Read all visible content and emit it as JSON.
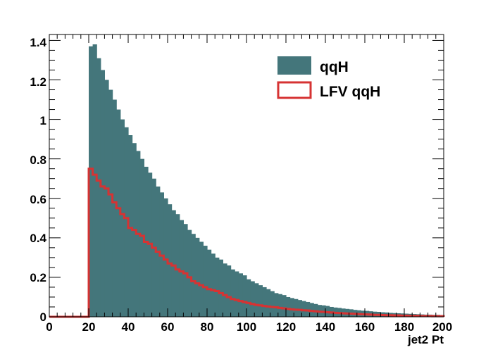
{
  "chart_data": {
    "type": "bar",
    "xlabel": "jet2 Pt",
    "ylabel": "",
    "xlim": [
      0,
      200
    ],
    "ylim": [
      0,
      1.43
    ],
    "x_ticks": [
      "0",
      "20",
      "40",
      "60",
      "80",
      "100",
      "120",
      "140",
      "160",
      "180",
      "200"
    ],
    "y_ticks": [
      "0",
      "0.2",
      "0.4",
      "0.6",
      "0.8",
      "1",
      "1.2",
      "1.4"
    ],
    "bin_width": 2,
    "bin_edges_start": 20,
    "legend_position": "top-right",
    "series": [
      {
        "name": "qqH",
        "style": "filled",
        "color": "#44767b",
        "values": [
          1.37,
          1.38,
          1.31,
          1.25,
          1.2,
          1.15,
          1.1,
          1.05,
          1.0,
          0.96,
          0.92,
          0.88,
          0.84,
          0.8,
          0.76,
          0.73,
          0.7,
          0.66,
          0.63,
          0.6,
          0.57,
          0.54,
          0.52,
          0.49,
          0.47,
          0.44,
          0.42,
          0.4,
          0.38,
          0.36,
          0.34,
          0.32,
          0.3,
          0.29,
          0.27,
          0.26,
          0.24,
          0.23,
          0.22,
          0.21,
          0.19,
          0.18,
          0.17,
          0.16,
          0.15,
          0.14,
          0.13,
          0.12,
          0.115,
          0.11,
          0.1,
          0.095,
          0.09,
          0.085,
          0.08,
          0.075,
          0.07,
          0.065,
          0.06,
          0.058,
          0.055,
          0.05,
          0.047,
          0.045,
          0.042,
          0.04,
          0.038,
          0.035,
          0.033,
          0.031,
          0.03,
          0.028,
          0.026,
          0.025,
          0.023,
          0.022,
          0.02,
          0.019,
          0.018,
          0.017,
          0.016,
          0.015,
          0.014,
          0.013,
          0.012,
          0.011,
          0.011,
          0.01,
          0.01,
          0.009
        ]
      },
      {
        "name": "LFV qqH",
        "style": "outline",
        "color": "#d63333",
        "values": [
          0.75,
          0.72,
          0.69,
          0.66,
          0.65,
          0.62,
          0.58,
          0.55,
          0.52,
          0.5,
          0.45,
          0.44,
          0.42,
          0.41,
          0.38,
          0.37,
          0.35,
          0.33,
          0.31,
          0.29,
          0.27,
          0.26,
          0.24,
          0.23,
          0.22,
          0.2,
          0.18,
          0.17,
          0.16,
          0.15,
          0.14,
          0.135,
          0.13,
          0.12,
          0.11,
          0.1,
          0.09,
          0.085,
          0.08,
          0.075,
          0.07,
          0.065,
          0.06,
          0.058,
          0.055,
          0.052,
          0.05,
          0.048,
          0.045,
          0.043,
          0.04,
          0.038,
          0.036,
          0.035,
          0.033,
          0.032,
          0.03,
          0.028,
          0.026,
          0.025,
          0.023,
          0.022,
          0.02,
          0.019,
          0.018,
          0.017,
          0.016,
          0.015,
          0.014,
          0.013,
          0.012,
          0.011,
          0.01,
          0.01,
          0.009,
          0.008,
          0.008,
          0.007,
          0.007,
          0.006,
          0.006,
          0.005,
          0.005,
          0.005,
          0.004,
          0.004,
          0.004,
          0.003,
          0.003,
          0.003
        ]
      }
    ]
  }
}
